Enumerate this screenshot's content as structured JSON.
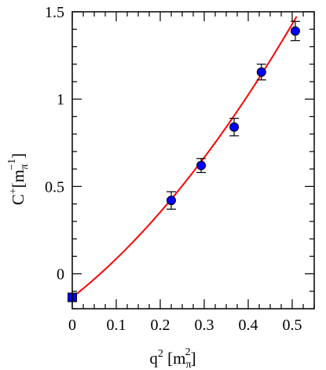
{
  "chart_data": {
    "type": "scatter",
    "xlabel": {
      "base": "q",
      "sup": "2",
      "bracket_open": " [m",
      "unit_sub": "π",
      "unit_sup": "2",
      "bracket_close": "]"
    },
    "ylabel": {
      "base": "C",
      "sup": "+",
      "bracket_open": "[m",
      "unit_sub": "π",
      "unit_sup": "−1",
      "bracket_close": "]"
    },
    "xlim": [
      0,
      0.55
    ],
    "ylim": [
      -0.2,
      1.5
    ],
    "x_ticks": [
      0,
      0.1,
      0.2,
      0.3,
      0.4,
      0.5
    ],
    "x_tick_labels": [
      "0",
      "0.1",
      "0.2",
      "0.3",
      "0.4",
      "0.5"
    ],
    "y_ticks": [
      0,
      0.5,
      1,
      1.5
    ],
    "y_tick_labels": [
      "0",
      "0.5",
      "1",
      "1.5"
    ],
    "x_minor_step": 0.025,
    "y_minor_step": 0.1,
    "series": [
      {
        "marker": "circle",
        "color": "#0000ff",
        "points": [
          {
            "x": 0.225,
            "y": 0.42,
            "err": 0.05
          },
          {
            "x": 0.293,
            "y": 0.62,
            "err": 0.04
          },
          {
            "x": 0.368,
            "y": 0.84,
            "err": 0.05
          },
          {
            "x": 0.43,
            "y": 1.155,
            "err": 0.045
          },
          {
            "x": 0.507,
            "y": 1.39,
            "err": 0.055
          }
        ]
      },
      {
        "marker": "square",
        "color": "#0000ff",
        "points": [
          {
            "x": 0.0,
            "y": -0.135,
            "err": 0.02
          }
        ]
      }
    ],
    "fit_curve": {
      "color": "#ff0000",
      "form": "y = a + b*x + c*x^2",
      "a": -0.135,
      "b": 1.98,
      "c": 2.3,
      "x_range": [
        0,
        0.51
      ]
    },
    "grid": false
  }
}
